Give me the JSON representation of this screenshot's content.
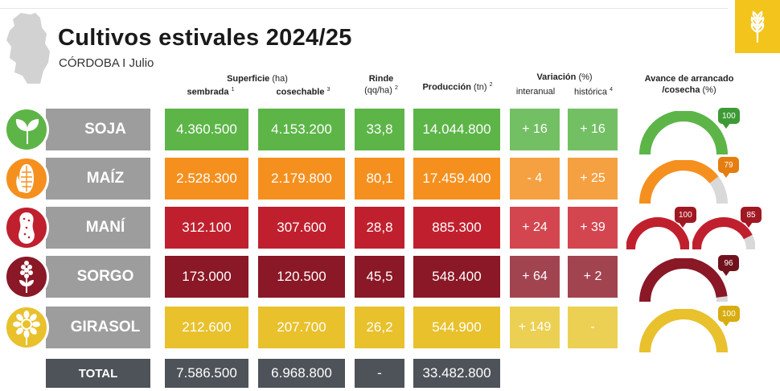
{
  "header": {
    "title": "Cultivos estivales 2024/25",
    "subtitle": "CÓRDOBA I Julio"
  },
  "columns": {
    "superficie": "Superficie",
    "superficie_unit": "(ha)",
    "sembrada": "sembrada",
    "sembrada_note": "1",
    "cosechable": "cosechable",
    "cosechable_note": "3",
    "rinde": "Rinde",
    "rinde_unit": "(qq/ha)",
    "rinde_note": "2",
    "produccion": "Producción",
    "produccion_unit": "(tn)",
    "produccion_note": "2",
    "variacion": "Variación",
    "variacion_unit": "(%)",
    "interanual": "interanual",
    "historica": "histórica",
    "historica_note": "4",
    "avance_line1": "Avance de arrancado",
    "avance_line2": "/cosecha",
    "avance_unit": "(%)"
  },
  "crops": [
    {
      "name": "SOJA",
      "icon": "soy-sprout-icon",
      "color": "#5db548",
      "dark": "#3e9a35",
      "sembrada": "4.360.500",
      "cosechable": "4.153.200",
      "rinde": "33,8",
      "produccion": "14.044.800",
      "interanual": "+ 16",
      "historica": "+ 16",
      "avance": [
        "100"
      ]
    },
    {
      "name": "MAÍZ",
      "icon": "corn-icon",
      "color": "#f5901e",
      "dark": "#e57d10",
      "sembrada": "2.528.300",
      "cosechable": "2.179.800",
      "rinde": "80,1",
      "produccion": "17.459.400",
      "interanual": "- 4",
      "historica": "+ 25",
      "avance": [
        "79"
      ]
    },
    {
      "name": "MANÍ",
      "icon": "peanut-icon",
      "color": "#c0202e",
      "dark": "#a01822",
      "sembrada": "312.100",
      "cosechable": "307.600",
      "rinde": "28,8",
      "produccion": "885.300",
      "interanual": "+ 24",
      "historica": "+ 39",
      "avance": [
        "100",
        "85"
      ]
    },
    {
      "name": "SORGO",
      "icon": "sorghum-icon",
      "color": "#8a1826",
      "dark": "#70121d",
      "sembrada": "173.000",
      "cosechable": "120.500",
      "rinde": "45,5",
      "produccion": "548.400",
      "interanual": "+ 64",
      "historica": "+ 2",
      "avance": [
        "96"
      ]
    },
    {
      "name": "GIRASOL",
      "icon": "sunflower-icon",
      "color": "#e8c12c",
      "dark": "#d8ad12",
      "sembrada": "212.600",
      "cosechable": "207.700",
      "rinde": "26,2",
      "produccion": "544.900",
      "interanual": "+ 149",
      "historica": "-",
      "avance": [
        "100"
      ]
    }
  ],
  "variation_colors": {
    "SOJA": [
      "#73c064",
      "#73c064"
    ],
    "MAÍZ": [
      "#f5a142",
      "#f5a142"
    ],
    "MANÍ": [
      "#d34650",
      "#d34650"
    ],
    "SORGO": [
      "#a24450",
      "#a24450"
    ],
    "GIRASOL": [
      "#ecd053",
      "#ecd053"
    ]
  },
  "total": {
    "label": "TOTAL",
    "sembrada": "7.586.500",
    "cosechable": "6.968.800",
    "rinde": "-",
    "produccion": "33.482.800"
  },
  "gauge_track_color": "#d9d9d9",
  "logo_icon": "wheat-icon",
  "map_icon": "cordoba-map-icon"
}
